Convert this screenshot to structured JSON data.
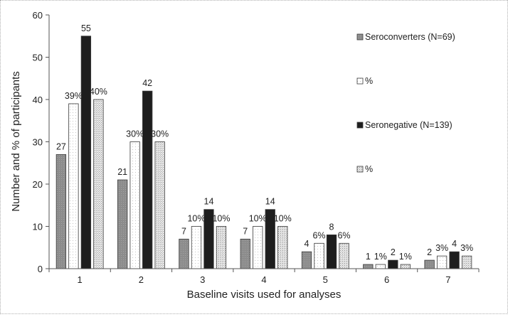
{
  "chart_data": {
    "type": "bar",
    "title": "",
    "xlabel": "Baseline visits used for analyses",
    "ylabel": "Number and % of participants",
    "ylim": [
      0,
      60
    ],
    "yticks": [
      0,
      10,
      20,
      30,
      40,
      50,
      60
    ],
    "categories": [
      "1",
      "2",
      "3",
      "4",
      "5",
      "6",
      "7"
    ],
    "legend_position": "right",
    "series": [
      {
        "name": "Seroconverters (N=69)",
        "values": [
          27,
          21,
          7,
          7,
          4,
          1,
          2
        ],
        "labels": [
          "27",
          "21",
          "7",
          "7",
          "4",
          "1",
          "2"
        ],
        "color": "#8c8c8c",
        "pattern": "solid-gray"
      },
      {
        "name": "%",
        "values": [
          39,
          30,
          10,
          10,
          6,
          1,
          3
        ],
        "labels": [
          "39%",
          "30%",
          "10%",
          "10%",
          "6%",
          "1%",
          "3%"
        ],
        "color": "#ffffff",
        "pattern": "white-dotted"
      },
      {
        "name": "Seronegative (N=139)",
        "values": [
          55,
          42,
          14,
          14,
          8,
          2,
          4
        ],
        "labels": [
          "55",
          "42",
          "14",
          "14",
          "8",
          "2",
          "4"
        ],
        "color": "#1e1e1e",
        "pattern": "solid-dark"
      },
      {
        "name": "%",
        "values": [
          40,
          30,
          10,
          10,
          6,
          1,
          3
        ],
        "labels": [
          "40%",
          "30%",
          "10%",
          "10%",
          "6%",
          "1%",
          "3%"
        ],
        "color": "#d0d0d0",
        "pattern": "light-dotted"
      }
    ]
  }
}
